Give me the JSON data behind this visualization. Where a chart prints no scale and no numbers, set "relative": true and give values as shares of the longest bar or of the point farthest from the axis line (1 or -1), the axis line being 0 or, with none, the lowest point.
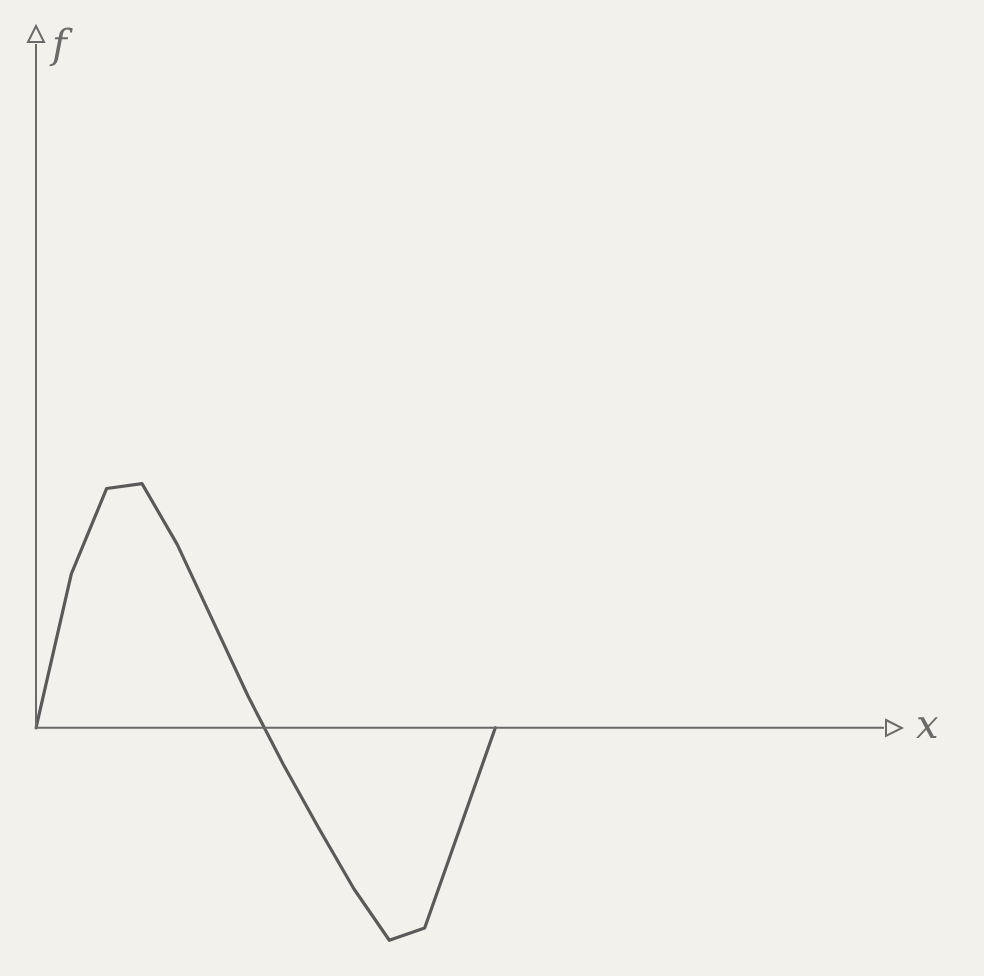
{
  "chart_data": {
    "type": "line",
    "relative": true,
    "xlabel": "x",
    "annotations": [
      "f"
    ],
    "color": "#5a5a5a",
    "marker": "none",
    "line_style": "solid",
    "legend": false,
    "categories": [
      null,
      null,
      null,
      null,
      null,
      null,
      null,
      null,
      null,
      null,
      null,
      null,
      null,
      null,
      null,
      null,
      null,
      null,
      null,
      null,
      null,
      null,
      null,
      null,
      null
    ],
    "values": [
      0,
      0.63,
      0.98,
      1,
      0.75,
      0.44,
      0.13,
      -0.15,
      -0.41,
      -0.66,
      -0.87,
      -0.82,
      -0.41,
      0,
      null,
      null,
      null,
      null,
      null,
      null,
      null,
      null,
      null,
      null,
      null
    ]
  }
}
